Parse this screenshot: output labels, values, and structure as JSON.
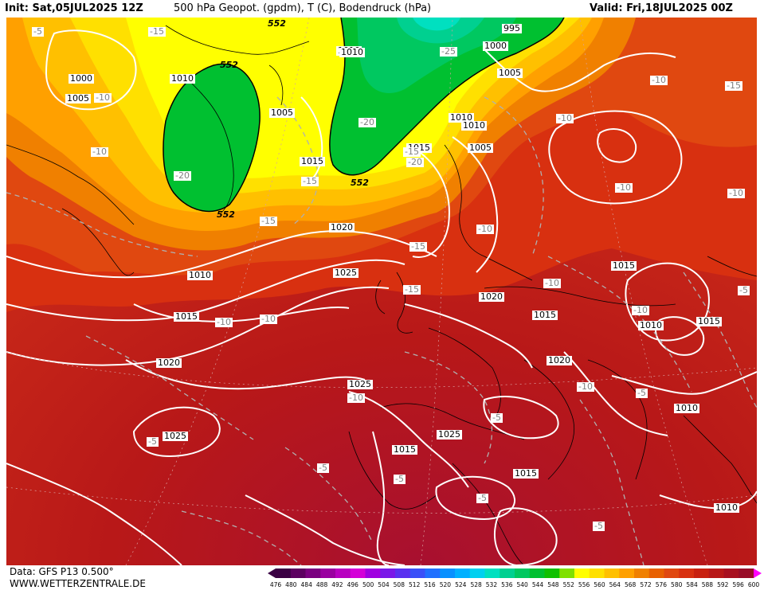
{
  "header": {
    "init": "Init: Sat,05JUL2025 12Z",
    "title": "500 hPa Geopot. (gpdm), T (C), Bodendruck (hPa)",
    "valid": "Valid: Fri,18JUL2025 00Z"
  },
  "footer": {
    "data_source": "Data: GFS P13 0.500°",
    "website": "WWW.WETTERZENTRALE.DE"
  },
  "colorbar": {
    "ticks": [
      "476",
      "480",
      "484",
      "488",
      "492",
      "496",
      "500",
      "504",
      "508",
      "512",
      "516",
      "520",
      "524",
      "528",
      "532",
      "536",
      "540",
      "544",
      "548",
      "552",
      "556",
      "560",
      "564",
      "568",
      "572",
      "576",
      "580",
      "584",
      "588",
      "592",
      "596",
      "600"
    ],
    "colors": [
      "#3a0043",
      "#5c0060",
      "#7a0080",
      "#9a00a0",
      "#b800c0",
      "#d400d8",
      "#a000e0",
      "#7a18e8",
      "#5a30f0",
      "#3a50f8",
      "#2070ff",
      "#0890ff",
      "#00b0ff",
      "#00d0f0",
      "#00e0c0",
      "#00d090",
      "#00c860",
      "#00c030",
      "#10c000",
      "#80e000",
      "#ffff00",
      "#ffe000",
      "#ffc000",
      "#ffa000",
      "#f08000",
      "#e86000",
      "#e04810",
      "#d83010",
      "#c82010",
      "#b81818",
      "#a81020",
      "#980c28",
      "#ff00ff"
    ]
  },
  "map_labels": {
    "pressure": [
      "1000",
      "1005",
      "1010",
      "1005",
      "1010",
      "1015",
      "1020",
      "1025",
      "1010",
      "1015",
      "1020",
      "1025",
      "1015",
      "1020",
      "1025",
      "1010",
      "1015",
      "1020",
      "1010",
      "1015",
      "1005",
      "1010",
      "1015",
      "1010",
      "1010",
      "1015",
      "1025",
      "1000",
      "995",
      "1005",
      "1010",
      "1015",
      "1020",
      "1010",
      "1010",
      "1010",
      "1010"
    ],
    "temperature": [
      "-5",
      "-15",
      "-10",
      "-10",
      "-20",
      "-15",
      "-15",
      "-20",
      "-20",
      "-15",
      "-25",
      "-10",
      "-10",
      "-15",
      "-10",
      "-15",
      "-10",
      "-10",
      "-10",
      "-10",
      "-15",
      "-10",
      "-10",
      "-10",
      "-5",
      "-10",
      "-5",
      "-5",
      "-5",
      "-5",
      "-5",
      "-5",
      "-5",
      "-5",
      "-5",
      "-5"
    ],
    "geopotential": [
      "552",
      "552",
      "552",
      "552",
      "552"
    ]
  }
}
